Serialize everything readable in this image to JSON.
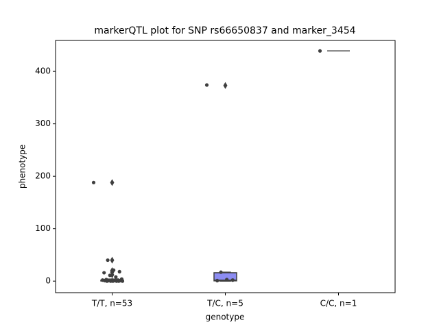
{
  "chart_data": {
    "type": "box",
    "title": "markerQTL plot for SNP rs66650837 and marker_3454",
    "xlabel": "genotype",
    "ylabel": "phenotype",
    "categories": [
      "T/T, n=53",
      "T/C, n=5",
      "C/C, n=1"
    ],
    "boxes": [
      {
        "color": "#4c5bd6",
        "min": 0,
        "q1": 0.3,
        "median": 1,
        "q3": 2,
        "max": 4,
        "outliers": [
          188,
          40,
          20,
          17,
          12
        ],
        "points": [
          188,
          40,
          21,
          18,
          16,
          11,
          8,
          4,
          3,
          2,
          2,
          2,
          1,
          1,
          1,
          1,
          0,
          0,
          0,
          0,
          0,
          0
        ]
      },
      {
        "color": "#8c8cf2",
        "min": 0,
        "q1": 0.5,
        "median": 2,
        "q3": 16,
        "max": 17,
        "outliers": [
          373
        ],
        "points": [
          374,
          17,
          3,
          2,
          1
        ]
      },
      {
        "color": "#6b6bd8",
        "min": 439,
        "q1": 439,
        "median": 439,
        "q3": 439,
        "max": 439,
        "outliers": [],
        "points": [
          439
        ]
      }
    ],
    "ylim": [
      -22,
      459
    ],
    "yticks": [
      0,
      100,
      200,
      300,
      400
    ],
    "point_color": "#3f3f3f",
    "line_color": "#3f3f3f"
  }
}
